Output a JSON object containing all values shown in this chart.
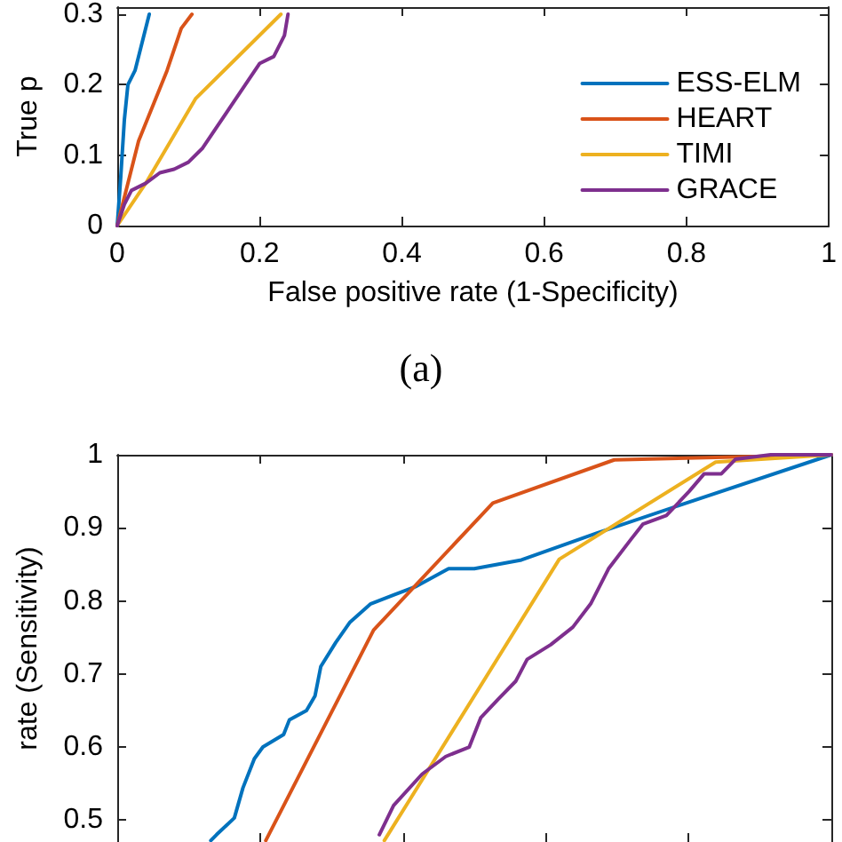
{
  "chart_data": [
    {
      "type": "line",
      "xlabel": "False positive rate (1-Specificity)",
      "ylabel": "True p",
      "annotations": [
        "(a)"
      ],
      "xlim": [
        0,
        1
      ],
      "xticks": [
        0,
        0.2,
        0.4,
        0.6,
        0.8,
        1
      ],
      "ylim": [
        0,
        0.31
      ],
      "yticks": [
        0,
        0.1,
        0.2,
        0.3
      ],
      "grid": false,
      "legend": "bottom right",
      "marker": "none",
      "line_style": "solid",
      "series": [
        {
          "name": "ESS-ELM",
          "color": "#0072bd",
          "x": [
            0,
            0.005,
            0.01,
            0.015,
            0.025,
            0.035,
            0.045
          ],
          "values": [
            0,
            0.07,
            0.15,
            0.2,
            0.22,
            0.26,
            0.3
          ]
        },
        {
          "name": "HEART",
          "color": "#d95319",
          "x": [
            0,
            0.03,
            0.07,
            0.09,
            0.105
          ],
          "values": [
            0,
            0.12,
            0.22,
            0.28,
            0.3
          ]
        },
        {
          "name": "TIMI",
          "color": "#edb120",
          "x": [
            0,
            0.04,
            0.11,
            0.23
          ],
          "values": [
            0,
            0.06,
            0.18,
            0.3
          ]
        },
        {
          "name": "GRACE",
          "color": "#7e2f8e",
          "x": [
            0,
            0.01,
            0.02,
            0.04,
            0.06,
            0.08,
            0.1,
            0.12,
            0.14,
            0.16,
            0.18,
            0.2,
            0.22,
            0.235,
            0.24
          ],
          "values": [
            0,
            0.03,
            0.05,
            0.06,
            0.075,
            0.08,
            0.09,
            0.11,
            0.14,
            0.17,
            0.2,
            0.23,
            0.24,
            0.27,
            0.3
          ]
        }
      ]
    },
    {
      "type": "line",
      "ylabel": "rate (Sensitivity)",
      "xlim": [
        0,
        1
      ],
      "xticks": [
        0,
        0.2,
        0.4,
        0.6,
        0.8,
        1
      ],
      "ylim": [
        0.47,
        1
      ],
      "yticks": [
        0.5,
        0.6,
        0.7,
        0.8,
        0.9,
        1
      ],
      "grid": false,
      "tick_labels": "y",
      "marker": "none",
      "line_style": "solid",
      "series": [
        {
          "color": "#0072bd",
          "x": [
            0.131,
            0.139,
            0.164,
            0.176,
            0.192,
            0.204,
            0.233,
            0.241,
            0.265,
            0.277,
            0.285,
            0.306,
            0.326,
            0.355,
            0.387,
            0.419,
            0.464,
            0.5,
            0.566,
            0.672,
            0.794,
            1
          ],
          "values": [
            0.472,
            0.48,
            0.503,
            0.544,
            0.584,
            0.6,
            0.617,
            0.637,
            0.65,
            0.67,
            0.71,
            0.743,
            0.771,
            0.796,
            0.808,
            0.82,
            0.844,
            0.844,
            0.856,
            0.893,
            0.933,
            1
          ]
        },
        {
          "color": "#d95319",
          "x": [
            0.208,
            0.359,
            0.526,
            0.696,
            1
          ],
          "values": [
            0.472,
            0.76,
            0.934,
            0.993,
            1
          ]
        },
        {
          "color": "#edb120",
          "x": [
            0.374,
            0.432,
            0.619,
            0.838,
            1
          ],
          "values": [
            0.472,
            0.563,
            0.857,
            0.99,
            1
          ]
        },
        {
          "color": "#7e2f8e",
          "x": [
            0.367,
            0.387,
            0.427,
            0.46,
            0.493,
            0.509,
            0.533,
            0.558,
            0.574,
            0.607,
            0.638,
            0.663,
            0.688,
            0.72,
            0.736,
            0.769,
            0.801,
            0.822,
            0.846,
            0.866,
            0.915,
            1
          ],
          "values": [
            0.48,
            0.52,
            0.563,
            0.587,
            0.6,
            0.64,
            0.665,
            0.69,
            0.72,
            0.74,
            0.764,
            0.796,
            0.844,
            0.885,
            0.905,
            0.917,
            0.95,
            0.974,
            0.974,
            0.994,
            1,
            1
          ]
        }
      ]
    }
  ]
}
